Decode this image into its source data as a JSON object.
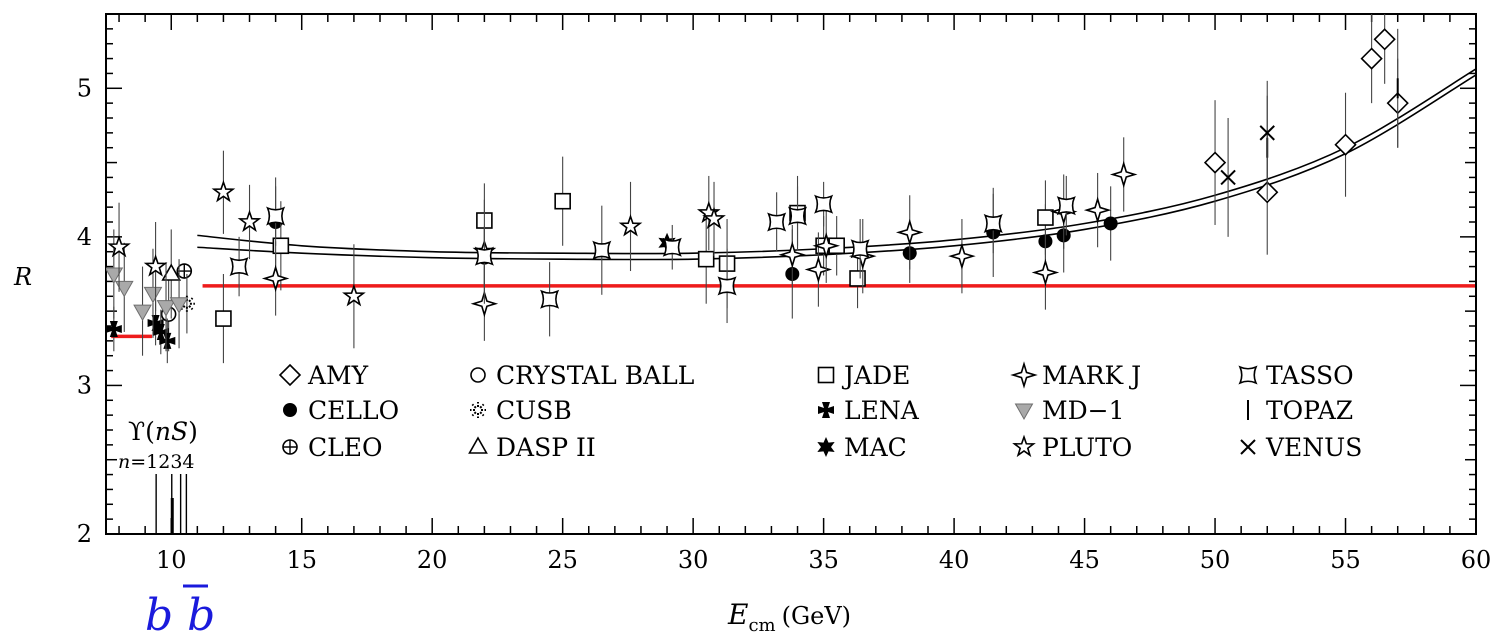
{
  "chart_data": {
    "type": "scatter",
    "title": "",
    "xlabel_main": "E",
    "xlabel_sub": "cm",
    "xlabel_unit": "(GeV)",
    "ylabel": "R",
    "xlim": [
      7.5,
      60
    ],
    "ylim": [
      2,
      5.5
    ],
    "xticks": [
      10,
      15,
      20,
      25,
      30,
      35,
      40,
      45,
      50,
      55,
      60
    ],
    "yticks": [
      2,
      3,
      4,
      5
    ],
    "red_lines": [
      {
        "x": [
          7.7,
          9.3
        ],
        "y": 3.33
      },
      {
        "x": [
          11.2,
          60
        ],
        "y": 3.67
      }
    ],
    "theory_bands": [
      {
        "x": [
          11,
          15,
          20,
          25,
          30,
          35,
          40,
          45,
          50,
          55,
          60
        ],
        "y": [
          4.01,
          3.94,
          3.9,
          3.89,
          3.89,
          3.92,
          3.98,
          4.09,
          4.28,
          4.6,
          5.13
        ]
      },
      {
        "x": [
          11,
          15,
          20,
          25,
          30,
          35,
          40,
          45,
          50,
          55,
          60
        ],
        "y": [
          3.93,
          3.89,
          3.86,
          3.85,
          3.85,
          3.88,
          3.94,
          4.05,
          4.24,
          4.56,
          5.09
        ]
      }
    ],
    "upsilon": {
      "label_main": "ϒ(",
      "label_var": "nS",
      "label_close": ")",
      "n_label": "n",
      "n_values": "=1234",
      "x": [
        9.46,
        10.02,
        10.36,
        10.58
      ]
    },
    "bbbar_label": "b b",
    "legend": [
      {
        "name": "AMY",
        "marker": "diamond-open"
      },
      {
        "name": "CELLO",
        "marker": "circle-filled"
      },
      {
        "name": "CLEO",
        "marker": "circle-plus"
      },
      {
        "name": "CRYSTAL BALL",
        "marker": "circle-open"
      },
      {
        "name": "CUSB",
        "marker": "burst"
      },
      {
        "name": "DASP II",
        "marker": "triangle-open"
      },
      {
        "name": "JADE",
        "marker": "square-open"
      },
      {
        "name": "LENA",
        "marker": "cross-filled"
      },
      {
        "name": "MAC",
        "marker": "star6-filled"
      },
      {
        "name": "MARK J",
        "marker": "star4-open"
      },
      {
        "name": "MD−1",
        "marker": "triangle-down-gray"
      },
      {
        "name": "PLUTO",
        "marker": "star5-open"
      },
      {
        "name": "TASSO",
        "marker": "square-concave"
      },
      {
        "name": "TOPAZ",
        "marker": "vbar"
      },
      {
        "name": "VENUS",
        "marker": "x-cross"
      }
    ],
    "series": [
      {
        "name": "AMY",
        "marker": "diamond-open",
        "points": [
          {
            "x": 50.0,
            "y": 4.5,
            "err": 0.42
          },
          {
            "x": 52.0,
            "y": 4.3,
            "err": 0.42
          },
          {
            "x": 55.0,
            "y": 4.62,
            "err": 0.35
          },
          {
            "x": 56.0,
            "y": 5.2,
            "err": 0.3
          },
          {
            "x": 56.5,
            "y": 5.33,
            "err": 0.3
          },
          {
            "x": 57.0,
            "y": 4.9,
            "err": 0.3
          }
        ]
      },
      {
        "name": "CELLO",
        "marker": "circle-filled",
        "points": [
          {
            "x": 14.0,
            "y": 4.1,
            "err": 0.3
          },
          {
            "x": 22.0,
            "y": 3.86,
            "err": 0.2
          },
          {
            "x": 33.8,
            "y": 3.75,
            "err": 0.3
          },
          {
            "x": 38.3,
            "y": 3.89,
            "err": 0.2
          },
          {
            "x": 41.5,
            "y": 4.03,
            "err": 0.3
          },
          {
            "x": 43.5,
            "y": 3.97,
            "err": 0.25
          },
          {
            "x": 44.2,
            "y": 4.01,
            "err": 0.25
          },
          {
            "x": 46.0,
            "y": 4.09,
            "err": 0.25
          }
        ]
      },
      {
        "name": "CLEO",
        "marker": "circle-plus",
        "points": [
          {
            "x": 10.5,
            "y": 3.77,
            "err": 0.0
          }
        ]
      },
      {
        "name": "CRYSTAL BALL",
        "marker": "circle-open",
        "points": [
          {
            "x": 9.9,
            "y": 3.48,
            "err": 0.25
          }
        ]
      },
      {
        "name": "CUSB",
        "marker": "burst",
        "points": [
          {
            "x": 10.6,
            "y": 3.55,
            "err": 0.2
          }
        ]
      },
      {
        "name": "DASP II",
        "marker": "triangle-open",
        "points": [
          {
            "x": 10.0,
            "y": 3.75,
            "err": 0.3
          }
        ]
      },
      {
        "name": "JADE",
        "marker": "square-open",
        "points": [
          {
            "x": 12.0,
            "y": 3.45,
            "err": 0.3
          },
          {
            "x": 14.2,
            "y": 3.94,
            "err": 0.3
          },
          {
            "x": 22.0,
            "y": 4.11,
            "err": 0.25
          },
          {
            "x": 25.0,
            "y": 4.24,
            "err": 0.3
          },
          {
            "x": 30.5,
            "y": 3.85,
            "err": 0.3
          },
          {
            "x": 31.3,
            "y": 3.82,
            "err": 0.3
          },
          {
            "x": 34.0,
            "y": 4.16,
            "err": 0.25
          },
          {
            "x": 35.0,
            "y": 3.94,
            "err": 0.2
          },
          {
            "x": 35.5,
            "y": 3.94,
            "err": 0.2
          },
          {
            "x": 36.3,
            "y": 3.72,
            "err": 0.2
          },
          {
            "x": 43.5,
            "y": 4.13,
            "err": 0.25
          }
        ]
      },
      {
        "name": "LENA",
        "marker": "cross-filled",
        "points": [
          {
            "x": 7.8,
            "y": 3.38,
            "err": 0.15
          },
          {
            "x": 9.4,
            "y": 3.42,
            "err": 0.15
          },
          {
            "x": 9.6,
            "y": 3.36,
            "err": 0.15
          },
          {
            "x": 9.85,
            "y": 3.3,
            "err": 0.15
          }
        ]
      },
      {
        "name": "MAC",
        "marker": "star6-filled",
        "points": [
          {
            "x": 29.0,
            "y": 3.96,
            "err": 0.0
          }
        ]
      },
      {
        "name": "MARK J",
        "marker": "star4-open",
        "points": [
          {
            "x": 14.0,
            "y": 3.72,
            "err": 0.25
          },
          {
            "x": 22.0,
            "y": 3.55,
            "err": 0.25
          },
          {
            "x": 33.8,
            "y": 3.88,
            "err": 0.2
          },
          {
            "x": 34.8,
            "y": 3.78,
            "err": 0.25
          },
          {
            "x": 35.1,
            "y": 3.94,
            "err": 0.25
          },
          {
            "x": 36.5,
            "y": 3.87,
            "err": 0.25
          },
          {
            "x": 38.3,
            "y": 4.03,
            "err": 0.25
          },
          {
            "x": 40.3,
            "y": 3.87,
            "err": 0.25
          },
          {
            "x": 43.5,
            "y": 3.76,
            "err": 0.25
          },
          {
            "x": 44.2,
            "y": 4.17,
            "err": 0.25
          },
          {
            "x": 45.5,
            "y": 4.18,
            "err": 0.25
          },
          {
            "x": 46.5,
            "y": 4.42,
            "err": 0.25
          }
        ]
      },
      {
        "name": "MD−1",
        "marker": "triangle-down-gray",
        "points": [
          {
            "x": 7.8,
            "y": 3.75,
            "err": 0.3
          },
          {
            "x": 8.2,
            "y": 3.66,
            "err": 0.3
          },
          {
            "x": 8.9,
            "y": 3.5,
            "err": 0.3
          },
          {
            "x": 9.3,
            "y": 3.62,
            "err": 0.3
          },
          {
            "x": 9.8,
            "y": 3.53,
            "err": 0.3
          },
          {
            "x": 10.3,
            "y": 3.55,
            "err": 0.3
          }
        ]
      },
      {
        "name": "PLUTO",
        "marker": "star5-open",
        "points": [
          {
            "x": 8.0,
            "y": 3.93,
            "err": 0.3
          },
          {
            "x": 9.4,
            "y": 3.8,
            "err": 0.3
          },
          {
            "x": 12.0,
            "y": 4.3,
            "err": 0.28
          },
          {
            "x": 13.0,
            "y": 4.1,
            "err": 0.25
          },
          {
            "x": 17.0,
            "y": 3.6,
            "err": 0.35
          },
          {
            "x": 22.0,
            "y": 3.9,
            "err": 0.35
          },
          {
            "x": 27.6,
            "y": 4.07,
            "err": 0.3
          },
          {
            "x": 30.6,
            "y": 4.16,
            "err": 0.25
          },
          {
            "x": 30.8,
            "y": 4.12,
            "err": 0.25
          }
        ]
      },
      {
        "name": "TASSO",
        "marker": "square-concave",
        "points": [
          {
            "x": 12.6,
            "y": 3.8,
            "err": 0.2
          },
          {
            "x": 14.0,
            "y": 4.14,
            "err": 0.2
          },
          {
            "x": 22.0,
            "y": 3.87,
            "err": 0.2
          },
          {
            "x": 24.5,
            "y": 3.58,
            "err": 0.25
          },
          {
            "x": 26.5,
            "y": 3.91,
            "err": 0.3
          },
          {
            "x": 29.2,
            "y": 3.93,
            "err": 0.15
          },
          {
            "x": 31.3,
            "y": 3.67,
            "err": 0.25
          },
          {
            "x": 33.2,
            "y": 4.1,
            "err": 0.2
          },
          {
            "x": 34.0,
            "y": 4.14,
            "err": 0.2
          },
          {
            "x": 35.0,
            "y": 4.22,
            "err": 0.15
          },
          {
            "x": 36.4,
            "y": 3.92,
            "err": 0.2
          },
          {
            "x": 41.5,
            "y": 4.09,
            "err": 0.2
          },
          {
            "x": 44.3,
            "y": 4.21,
            "err": 0.2
          }
        ]
      },
      {
        "name": "TOPAZ",
        "marker": "vbar",
        "points": [
          {
            "x": 52.0,
            "y": 4.6,
            "err": 0.35
          },
          {
            "x": 57.0,
            "y": 5.0,
            "err": 0.4
          }
        ]
      },
      {
        "name": "VENUS",
        "marker": "x-cross",
        "points": [
          {
            "x": 50.5,
            "y": 4.4,
            "err": 0.4
          },
          {
            "x": 52.0,
            "y": 4.7,
            "err": 0.35
          }
        ]
      }
    ]
  }
}
